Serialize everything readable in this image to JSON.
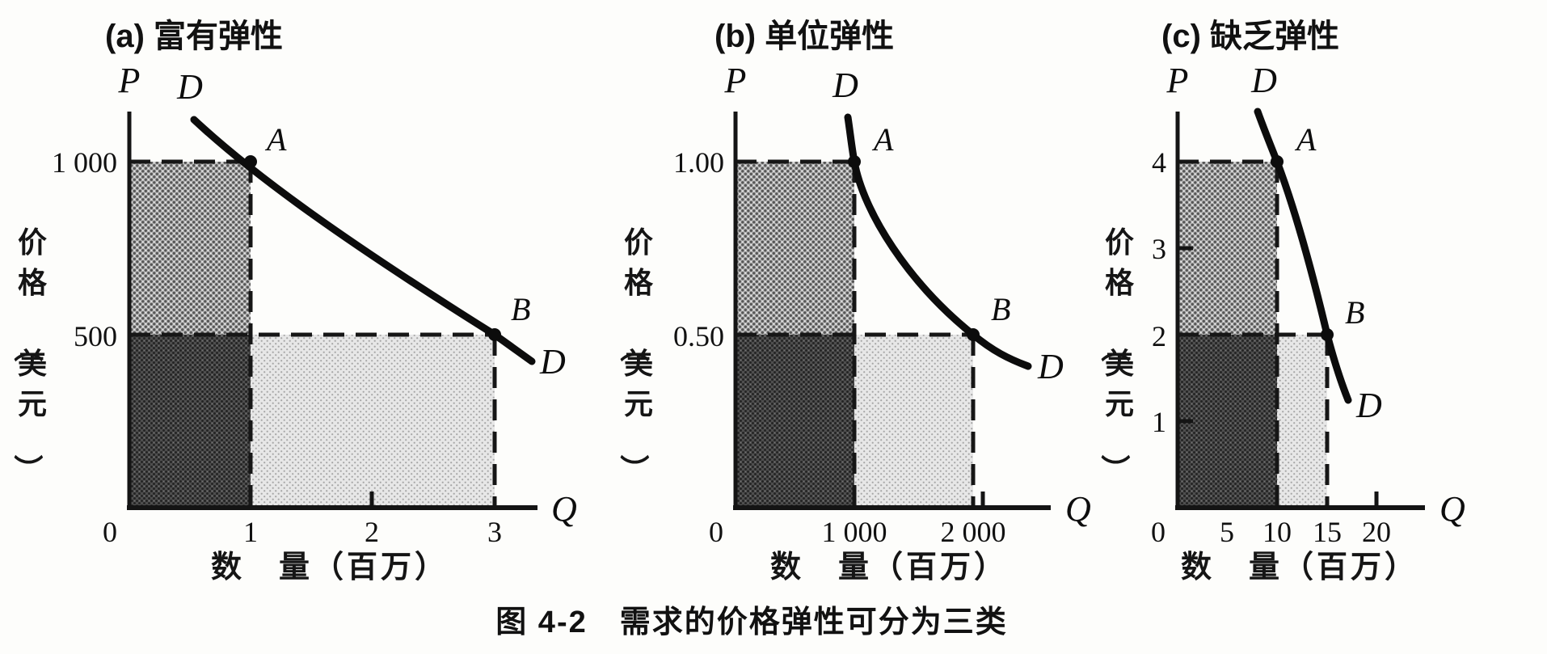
{
  "figure": {
    "caption": "图 4-2　需求的价格弹性可分为三类"
  },
  "colors": {
    "ink": "#111111",
    "paper": "#fdfdfb",
    "shade_upper_left": "#9b9b9b",
    "shade_lower_left": "#474747",
    "shade_lower_right": "#dcdcdc"
  },
  "panels": [
    {
      "key": "a",
      "title": "(a) 富有弹性",
      "p_label": "P",
      "q_label": "Q",
      "d_label": "D",
      "point_labels": [
        "A",
        "B"
      ],
      "y_ticks": [
        "1 000",
        "500"
      ],
      "x_ticks": [
        "0",
        "1",
        "2",
        "3"
      ],
      "y_axis_title": "价格（美元）",
      "x_axis_title": "数　量（百万）"
    },
    {
      "key": "b",
      "title": "(b) 单位弹性",
      "p_label": "P",
      "q_label": "Q",
      "d_label": "D",
      "point_labels": [
        "A",
        "B"
      ],
      "y_ticks": [
        "1.00",
        "0.50"
      ],
      "x_ticks": [
        "0",
        "1 000",
        "2 000"
      ],
      "y_axis_title": "价格（美元）",
      "x_axis_title": "数　量（百万）"
    },
    {
      "key": "c",
      "title": "(c) 缺乏弹性",
      "p_label": "P",
      "q_label": "Q",
      "d_label": "D",
      "point_labels": [
        "A",
        "B"
      ],
      "y_ticks": [
        "4",
        "3",
        "2",
        "1"
      ],
      "x_ticks": [
        "0",
        "5",
        "10",
        "15",
        "20"
      ],
      "y_axis_title": "价格（美元）",
      "x_axis_title": "数　量（百万）"
    }
  ],
  "chart_data": [
    {
      "type": "line",
      "title": "(a) 富有弹性",
      "elasticity": "elastic demand",
      "curve_name": "D",
      "xlabel": "数量（百万）",
      "ylabel": "价格（美元）",
      "x_ticks": [
        0,
        1,
        2,
        3
      ],
      "y_ticks": [
        500,
        1000
      ],
      "xlim": [
        0,
        3.4
      ],
      "ylim": [
        0,
        1330
      ],
      "points": [
        {
          "label": "A",
          "quantity": 1,
          "price": 1000
        },
        {
          "label": "B",
          "quantity": 3,
          "price": 500
        }
      ],
      "shaded_regions": [
        {
          "region": "0≤Q≤1, 500≤P≤1000",
          "shade": "medium"
        },
        {
          "region": "0≤Q≤1, 0≤P≤500",
          "shade": "dark"
        },
        {
          "region": "1≤Q≤3, 0≤P≤500",
          "shade": "light"
        }
      ],
      "grid": false,
      "legend": false
    },
    {
      "type": "line",
      "title": "(b) 单位弹性",
      "elasticity": "unit elastic demand",
      "curve_name": "D",
      "xlabel": "数量（百万）",
      "ylabel": "价格（美元）",
      "x_ticks": [
        0,
        1000,
        2000
      ],
      "y_ticks": [
        0.5,
        1.0
      ],
      "xlim": [
        0,
        2700
      ],
      "ylim": [
        0,
        1.33
      ],
      "points": [
        {
          "label": "A",
          "quantity": 1000,
          "price": 1.0
        },
        {
          "label": "B",
          "quantity": 2000,
          "price": 0.5
        }
      ],
      "shaded_regions": [
        {
          "region": "0≤Q≤1000, 0.50≤P≤1.00",
          "shade": "medium"
        },
        {
          "region": "0≤Q≤1000, 0≤P≤0.50",
          "shade": "dark"
        },
        {
          "region": "1000≤Q≤2000, 0≤P≤0.50",
          "shade": "light"
        }
      ],
      "grid": false,
      "legend": false
    },
    {
      "type": "line",
      "title": "(c) 缺乏弹性",
      "elasticity": "inelastic demand",
      "curve_name": "D",
      "xlabel": "数量（百万）",
      "ylabel": "价格（美元）",
      "x_ticks": [
        0,
        5,
        10,
        15,
        20
      ],
      "y_ticks": [
        1,
        2,
        3,
        4
      ],
      "xlim": [
        0,
        25
      ],
      "ylim": [
        0,
        4.6
      ],
      "points": [
        {
          "label": "A",
          "quantity": 10,
          "price": 4
        },
        {
          "label": "B",
          "quantity": 15,
          "price": 2
        }
      ],
      "shaded_regions": [
        {
          "region": "0≤Q≤10, 2≤P≤4",
          "shade": "medium"
        },
        {
          "region": "0≤Q≤10, 0≤P≤2",
          "shade": "dark"
        },
        {
          "region": "10≤Q≤15, 0≤P≤2",
          "shade": "light"
        }
      ],
      "grid": false,
      "legend": false
    }
  ]
}
